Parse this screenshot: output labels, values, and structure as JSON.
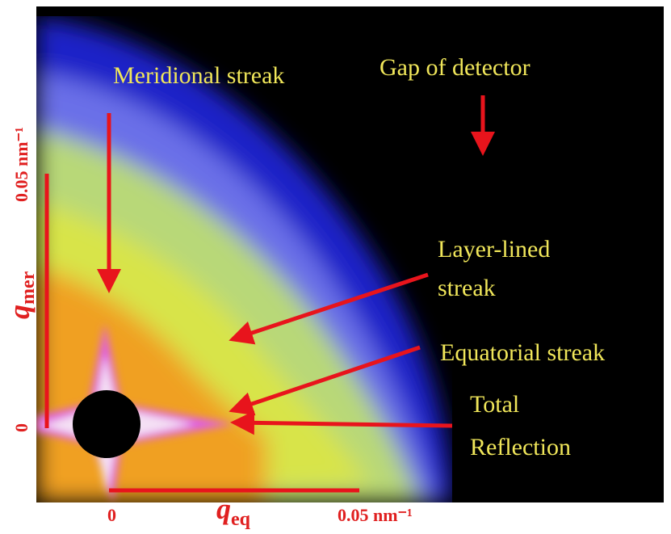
{
  "annotations": {
    "meridional": "Meridional streak",
    "gap": "Gap of detector",
    "layer_lined": [
      "Layer-lined",
      "streak"
    ],
    "equatorial": "Equatorial streak",
    "total_reflection": [
      "Total",
      "Reflection"
    ]
  },
  "axes": {
    "y_label": {
      "symbol": "q",
      "subscript": "mer"
    },
    "x_label": {
      "symbol": "q",
      "subscript": "eq"
    },
    "y_tick_top": "0.05 nm⁻¹",
    "y_tick_zero": "0",
    "x_tick_zero": "0",
    "x_tick_right": "0.05 nm⁻¹"
  }
}
